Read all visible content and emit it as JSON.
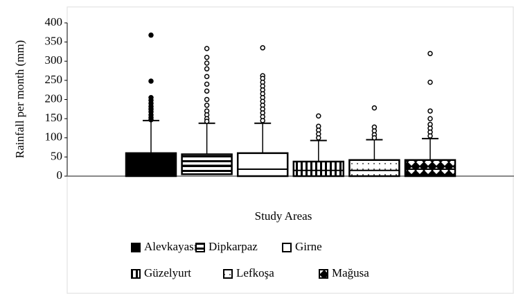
{
  "chart_data": {
    "type": "box",
    "y_label": "Rainfall per month (mm)",
    "x_label": "Study Areas",
    "ylim": [
      0,
      400
    ],
    "yticks": [
      0,
      50,
      100,
      150,
      200,
      250,
      300,
      350,
      400
    ],
    "series": [
      {
        "name": "Alevkayası",
        "color": "#000000",
        "pattern": "solid",
        "marker": "filled",
        "q1": 0,
        "median": 20,
        "q3": 60,
        "upper": 145,
        "outliers": [
          368,
          248,
          205,
          198,
          190,
          182,
          175,
          168,
          160,
          153,
          147
        ]
      },
      {
        "name": "Dipkarpaz",
        "color": "#000000",
        "pattern": "hlines",
        "marker": "hollow",
        "q1": 5,
        "median": 28,
        "q3": 57,
        "upper": 138,
        "outliers": [
          333,
          310,
          295,
          280,
          260,
          240,
          222,
          200,
          185,
          170,
          160,
          150,
          143
        ]
      },
      {
        "name": "Girne",
        "color": "#000000",
        "pattern": "none",
        "marker": "hollow",
        "q1": 0,
        "median": 18,
        "q3": 60,
        "upper": 138,
        "outliers": [
          335,
          262,
          255,
          245,
          235,
          225,
          215,
          205,
          195,
          185,
          175,
          165,
          155,
          145
        ]
      },
      {
        "name": "Güzelyurt",
        "color": "#000000",
        "pattern": "vlines",
        "marker": "hollow",
        "q1": 0,
        "median": 15,
        "q3": 38,
        "upper": 93,
        "outliers": [
          157,
          130,
          120,
          110,
          100
        ]
      },
      {
        "name": "Lefkoşa",
        "color": "#000000",
        "pattern": "dots",
        "marker": "hollow",
        "q1": 0,
        "median": 15,
        "q3": 42,
        "upper": 95,
        "outliers": [
          178,
          128,
          118,
          108,
          100
        ]
      },
      {
        "name": "Mağusa",
        "color": "#000000",
        "pattern": "diamonds",
        "marker": "hollow",
        "q1": 0,
        "median": 18,
        "q3": 42,
        "upper": 98,
        "outliers": [
          320,
          245,
          170,
          150,
          135,
          125,
          115,
          105
        ]
      }
    ]
  }
}
